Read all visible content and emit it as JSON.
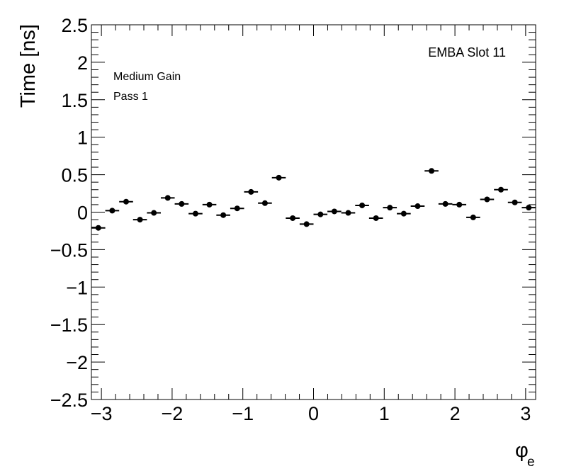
{
  "chart_data": {
    "type": "scatter",
    "title": "",
    "xlabel": "φ",
    "xlabel_subscript": "e",
    "ylabel": "Time [ns]",
    "xlim": [
      -3.14159,
      3.14159
    ],
    "ylim": [
      -2.5,
      2.5
    ],
    "grid": false,
    "legend": "none",
    "annotations": {
      "top_right": "EMBA Slot 11",
      "line1": "Medium Gain",
      "line2": "Pass 1"
    },
    "x_ticks": [
      -3,
      -2,
      -1,
      0,
      1,
      2,
      3
    ],
    "x_tick_labels": [
      "−3",
      "−2",
      "−1",
      "0",
      "1",
      "2",
      "3"
    ],
    "y_ticks": [
      -2.5,
      -2,
      -1.5,
      -1,
      -0.5,
      0,
      0.5,
      1,
      1.5,
      2,
      2.5
    ],
    "y_tick_labels": [
      "−2.5",
      "−2",
      "−1.5",
      "−1",
      "−0.5",
      "0",
      "0.5",
      "1",
      "1.5",
      "2",
      "2.5"
    ],
    "bin_half_width": 0.0982,
    "series": [
      {
        "marker": "circle",
        "color": "#000000",
        "points": [
          {
            "x": -3.0434,
            "y": -0.21
          },
          {
            "x": -2.8471,
            "y": 0.02
          },
          {
            "x": -2.6507,
            "y": 0.14
          },
          {
            "x": -2.4544,
            "y": -0.1
          },
          {
            "x": -2.258,
            "y": -0.01
          },
          {
            "x": -2.0617,
            "y": 0.19
          },
          {
            "x": -1.8653,
            "y": 0.11
          },
          {
            "x": -1.669,
            "y": -0.02
          },
          {
            "x": -1.4726,
            "y": 0.1
          },
          {
            "x": -1.2763,
            "y": -0.04
          },
          {
            "x": -1.0799,
            "y": 0.05
          },
          {
            "x": -0.8836,
            "y": 0.27
          },
          {
            "x": -0.6872,
            "y": 0.12
          },
          {
            "x": -0.4909,
            "y": 0.46
          },
          {
            "x": -0.2945,
            "y": -0.08
          },
          {
            "x": -0.0982,
            "y": -0.16
          },
          {
            "x": 0.0982,
            "y": -0.03
          },
          {
            "x": 0.2945,
            "y": 0.01
          },
          {
            "x": 0.4909,
            "y": -0.01
          },
          {
            "x": 0.6872,
            "y": 0.09
          },
          {
            "x": 0.8836,
            "y": -0.08
          },
          {
            "x": 1.0799,
            "y": 0.06
          },
          {
            "x": 1.2763,
            "y": -0.02
          },
          {
            "x": 1.4726,
            "y": 0.08
          },
          {
            "x": 1.669,
            "y": 0.55
          },
          {
            "x": 1.8653,
            "y": 0.11
          },
          {
            "x": 2.0617,
            "y": 0.1
          },
          {
            "x": 2.258,
            "y": -0.07
          },
          {
            "x": 2.4544,
            "y": 0.17
          },
          {
            "x": 2.6507,
            "y": 0.3
          },
          {
            "x": 2.8471,
            "y": 0.13
          },
          {
            "x": 3.0434,
            "y": 0.06
          }
        ]
      }
    ]
  }
}
